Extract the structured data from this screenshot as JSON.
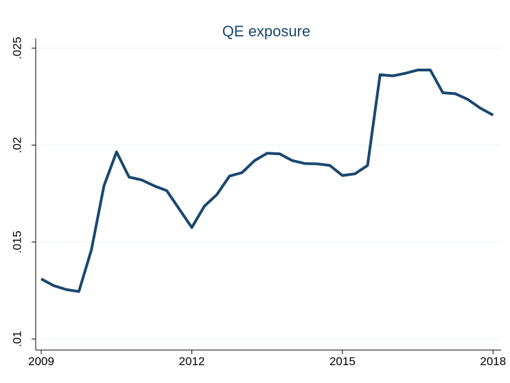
{
  "chart_data": {
    "type": "line",
    "title": "QE exposure",
    "x": [
      2009,
      2009.25,
      2009.5,
      2009.75,
      2010,
      2010.25,
      2010.5,
      2010.75,
      2011,
      2011.25,
      2011.5,
      2011.75,
      2012,
      2012.25,
      2012.5,
      2012.75,
      2013,
      2013.25,
      2013.5,
      2013.75,
      2014,
      2014.25,
      2014.5,
      2014.75,
      2015,
      2015.25,
      2015.5,
      2015.75,
      2016,
      2016.25,
      2016.5,
      2016.75,
      2017,
      2017.25,
      2017.5,
      2017.75,
      2018
    ],
    "series": [
      {
        "name": "QE exposure",
        "color": "#1a476f",
        "values": [
          0.0131,
          0.01275,
          0.01255,
          0.01245,
          0.0146,
          0.0179,
          0.01965,
          0.01835,
          0.0182,
          0.0179,
          0.01765,
          0.0167,
          0.01575,
          0.01685,
          0.01745,
          0.0184,
          0.01858,
          0.0192,
          0.01958,
          0.01955,
          0.0192,
          0.01905,
          0.01903,
          0.01895,
          0.01843,
          0.01852,
          0.01895,
          0.02363,
          0.02357,
          0.0237,
          0.02387,
          0.02387,
          0.0227,
          0.02265,
          0.02235,
          0.0219,
          0.02155
        ]
      }
    ],
    "xlim": [
      2008.89,
      2018.16
    ],
    "xticks": [
      2009,
      2012,
      2015,
      2018
    ],
    "ylim": [
      0.00943,
      0.0255
    ],
    "yticks": [
      {
        "value": 0.01,
        "label": ".01"
      },
      {
        "value": 0.015,
        "label": ".015"
      },
      {
        "value": 0.02,
        "label": ".02"
      },
      {
        "value": 0.025,
        "label": ".025"
      }
    ],
    "grid": true
  }
}
